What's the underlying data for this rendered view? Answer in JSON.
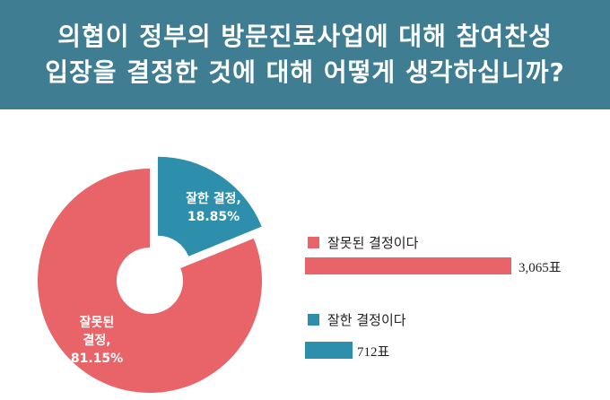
{
  "header": {
    "title_line1": "의협이 정부의 방문진료사업에 대해 참여찬성",
    "title_line2": "입장을 결정한 것에 대해 어떻게 생각하십니까?"
  },
  "colors": {
    "header_bg": "#3f7d92",
    "wrong": "#e86468",
    "right": "#2e8fad"
  },
  "chart_data": {
    "type": "pie",
    "donut": true,
    "slices": [
      {
        "name": "잘못된 결정",
        "label_lines": [
          "잘못된",
          "결정,",
          "81.15%"
        ],
        "percent": 81.15,
        "votes": 3065,
        "votes_label": "3,065표",
        "legend_label": "잘못된 결정이다",
        "color": "#e86468"
      },
      {
        "name": "잘한 결정",
        "label_lines": [
          "잘한 결정,",
          "18.85%"
        ],
        "percent": 18.85,
        "votes": 712,
        "votes_label": "712표",
        "legend_label": "잘한 결정이다",
        "color": "#2e8fad",
        "exploded": true
      }
    ]
  }
}
